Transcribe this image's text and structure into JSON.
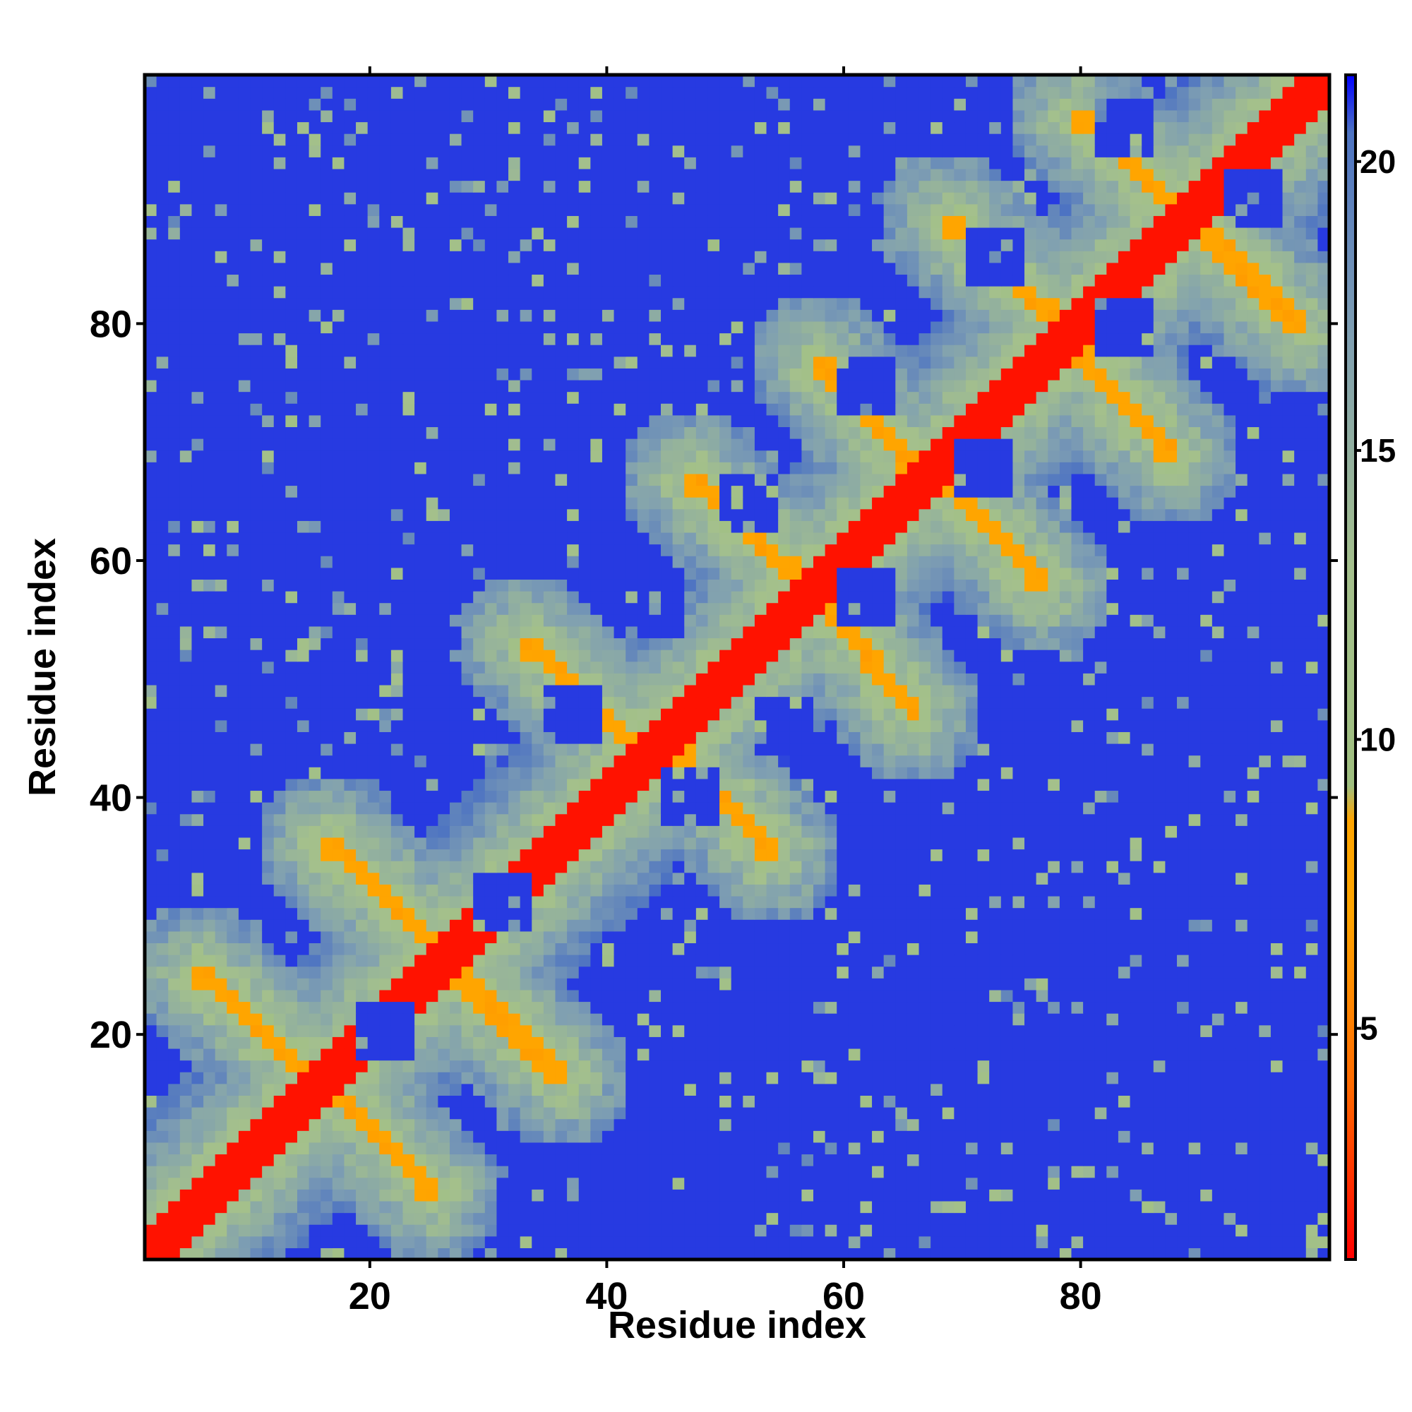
{
  "chart_data": {
    "type": "heatmap",
    "title": "",
    "xlabel": "Residue index",
    "ylabel": "Residue index",
    "n_residues": 101,
    "xlim": [
      1,
      101
    ],
    "ylim": [
      1,
      101
    ],
    "x_ticks": [
      {
        "value": 20,
        "label": "20"
      },
      {
        "value": 40,
        "label": "40"
      },
      {
        "value": 60,
        "label": "60"
      },
      {
        "value": 80,
        "label": "80"
      }
    ],
    "y_ticks": [
      {
        "value": 20,
        "label": "20"
      },
      {
        "value": 40,
        "label": "40"
      },
      {
        "value": 60,
        "label": "60"
      },
      {
        "value": 80,
        "label": "80"
      }
    ],
    "colorbar": {
      "range": [
        1,
        21.5
      ],
      "ticks": [
        {
          "value": 5,
          "label": "5"
        },
        {
          "value": 10,
          "label": "10"
        },
        {
          "value": 15,
          "label": "15"
        },
        {
          "value": 20,
          "label": "20"
        }
      ],
      "stops": [
        {
          "value": 1,
          "color": "#ff0000"
        },
        {
          "value": 4,
          "color": "#ff6a00"
        },
        {
          "value": 7,
          "color": "#ffa500"
        },
        {
          "value": 8.6,
          "color": "#ffa500"
        },
        {
          "value": 9.2,
          "color": "#9fbf7f"
        },
        {
          "value": 13,
          "color": "#a4c08c"
        },
        {
          "value": 17,
          "color": "#7f9fb2"
        },
        {
          "value": 20.5,
          "color": "#4d73c2"
        },
        {
          "value": 21.5,
          "color": "#0000ff"
        }
      ]
    },
    "background_value": 21,
    "diagonal_band": {
      "half_width": 2,
      "value": 1.5
    },
    "secondary_structure_stripes": [
      {
        "orientation": "anti",
        "from": [
          5,
          25
        ],
        "to": [
          15,
          16
        ],
        "value": 6.5
      },
      {
        "orientation": "anti",
        "from": [
          16,
          16
        ],
        "to": [
          25,
          6
        ],
        "value": 6.5
      },
      {
        "orientation": "anti",
        "from": [
          16,
          36
        ],
        "to": [
          26,
          27
        ],
        "value": 6.5
      },
      {
        "orientation": "anti",
        "from": [
          27,
          25
        ],
        "to": [
          36,
          16
        ],
        "value": 6.5
      },
      {
        "orientation": "anti",
        "from": [
          33,
          53
        ],
        "to": [
          43,
          44
        ],
        "value": 6.5
      },
      {
        "orientation": "anti",
        "from": [
          46,
          44
        ],
        "to": [
          54,
          35
        ],
        "value": 6.5
      },
      {
        "orientation": "anti",
        "from": [
          47,
          67
        ],
        "to": [
          56,
          59
        ],
        "value": 6.5
      },
      {
        "orientation": "anti",
        "from": [
          59,
          56
        ],
        "to": [
          66,
          47
        ],
        "value": 6.5
      },
      {
        "orientation": "anti",
        "from": [
          58,
          77
        ],
        "to": [
          66,
          68
        ],
        "value": 6.5
      },
      {
        "orientation": "anti",
        "from": [
          69,
          67
        ],
        "to": [
          77,
          58
        ],
        "value": 6.5
      },
      {
        "orientation": "anti",
        "from": [
          69,
          89
        ],
        "to": [
          78,
          81
        ],
        "value": 6.5
      },
      {
        "orientation": "anti",
        "from": [
          80,
          78
        ],
        "to": [
          88,
          69
        ],
        "value": 6.5
      },
      {
        "orientation": "anti",
        "from": [
          80,
          98
        ],
        "to": [
          89,
          90
        ],
        "value": 6.5
      },
      {
        "orientation": "anti",
        "from": [
          90,
          89
        ],
        "to": [
          99,
          80
        ],
        "value": 6.5
      }
    ],
    "loops": [
      {
        "center": [
          21,
          20
        ],
        "radius": 4
      },
      {
        "center": [
          31,
          31
        ],
        "radius": 4
      },
      {
        "center": [
          47,
          40
        ],
        "radius": 4
      },
      {
        "center": [
          37,
          47
        ],
        "radius": 4
      },
      {
        "center": [
          55,
          46
        ],
        "radius": 4
      },
      {
        "center": [
          44,
          56
        ],
        "radius": 4
      },
      {
        "center": [
          62,
          57
        ],
        "radius": 4
      },
      {
        "center": [
          52,
          65
        ],
        "radius": 4
      },
      {
        "center": [
          72,
          68
        ],
        "radius": 4
      },
      {
        "center": [
          62,
          75
        ],
        "radius": 4
      },
      {
        "center": [
          84,
          80
        ],
        "radius": 4
      },
      {
        "center": [
          73,
          86
        ],
        "radius": 4
      },
      {
        "center": [
          95,
          91
        ],
        "radius": 4
      },
      {
        "center": [
          84,
          97
        ],
        "radius": 4
      }
    ],
    "grid": false,
    "legend": "colorbar-right"
  }
}
